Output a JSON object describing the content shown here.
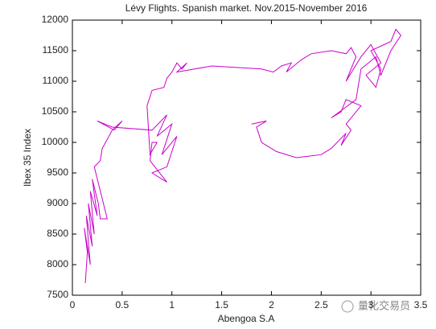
{
  "chart_data": {
    "type": "line",
    "title": "Lévy Flights. Spanish market. Nov.2015-November 2016",
    "xlabel": "Abengoa S.A",
    "ylabel": "Ibex 35 Index",
    "annotation": "量化交易员",
    "color": "#cc00cc",
    "x": [
      0.13,
      0.15,
      0.12,
      0.18,
      0.14,
      0.2,
      0.16,
      0.22,
      0.18,
      0.25,
      0.2,
      0.26,
      0.28,
      0.35,
      0.22,
      0.28,
      0.3,
      0.4,
      0.5,
      0.42,
      0.25,
      0.4,
      0.8,
      0.95,
      0.85,
      1.0,
      0.9,
      1.05,
      0.95,
      0.8,
      0.95,
      0.78,
      0.8,
      0.85,
      0.78,
      0.75,
      0.8,
      0.92,
      0.95,
      1.0,
      1.05,
      1.1,
      1.15,
      1.05,
      1.4,
      1.9,
      2.02,
      2.1,
      2.2,
      2.15,
      2.3,
      2.4,
      2.6,
      2.75,
      2.8,
      2.85,
      2.75,
      2.9,
      3.0,
      3.1,
      2.95,
      3.05,
      3.1,
      3.0,
      3.2,
      3.25,
      3.3,
      3.2,
      3.1,
      3.05,
      2.9,
      2.85,
      2.6,
      2.7,
      2.75,
      2.9,
      2.75,
      2.8,
      2.7,
      2.75,
      2.6,
      2.5,
      2.25,
      2.05,
      1.9,
      1.85,
      1.95,
      1.8
    ],
    "values": [
      7700,
      8200,
      8600,
      8000,
      8800,
      8300,
      9000,
      8500,
      9200,
      8800,
      9400,
      9000,
      8750,
      8750,
      9600,
      9700,
      9900,
      10200,
      10350,
      10200,
      10350,
      10250,
      10200,
      10450,
      10100,
      10300,
      9800,
      10100,
      9600,
      9500,
      9350,
      9700,
      10000,
      10000,
      9800,
      10600,
      10850,
      10900,
      11050,
      11150,
      11300,
      11200,
      11300,
      11150,
      11250,
      11200,
      11150,
      11250,
      11300,
      11150,
      11350,
      11450,
      11500,
      11450,
      11550,
      11400,
      11000,
      11400,
      11600,
      11300,
      11100,
      10900,
      11200,
      11500,
      11650,
      11850,
      11750,
      11500,
      11100,
      11400,
      11200,
      10700,
      10400,
      10500,
      10700,
      10600,
      10300,
      10200,
      9950,
      10150,
      9900,
      9800,
      9750,
      9850,
      10000,
      10250,
      10350,
      10300
    ],
    "xlim": [
      0,
      3.5
    ],
    "xticks": [
      0,
      0.5,
      1,
      1.5,
      2,
      2.5,
      3,
      3.5
    ],
    "ylim": [
      7500,
      12000
    ],
    "yticks": [
      7500,
      8000,
      8500,
      9000,
      9500,
      10000,
      10500,
      11000,
      11500,
      12000
    ]
  }
}
